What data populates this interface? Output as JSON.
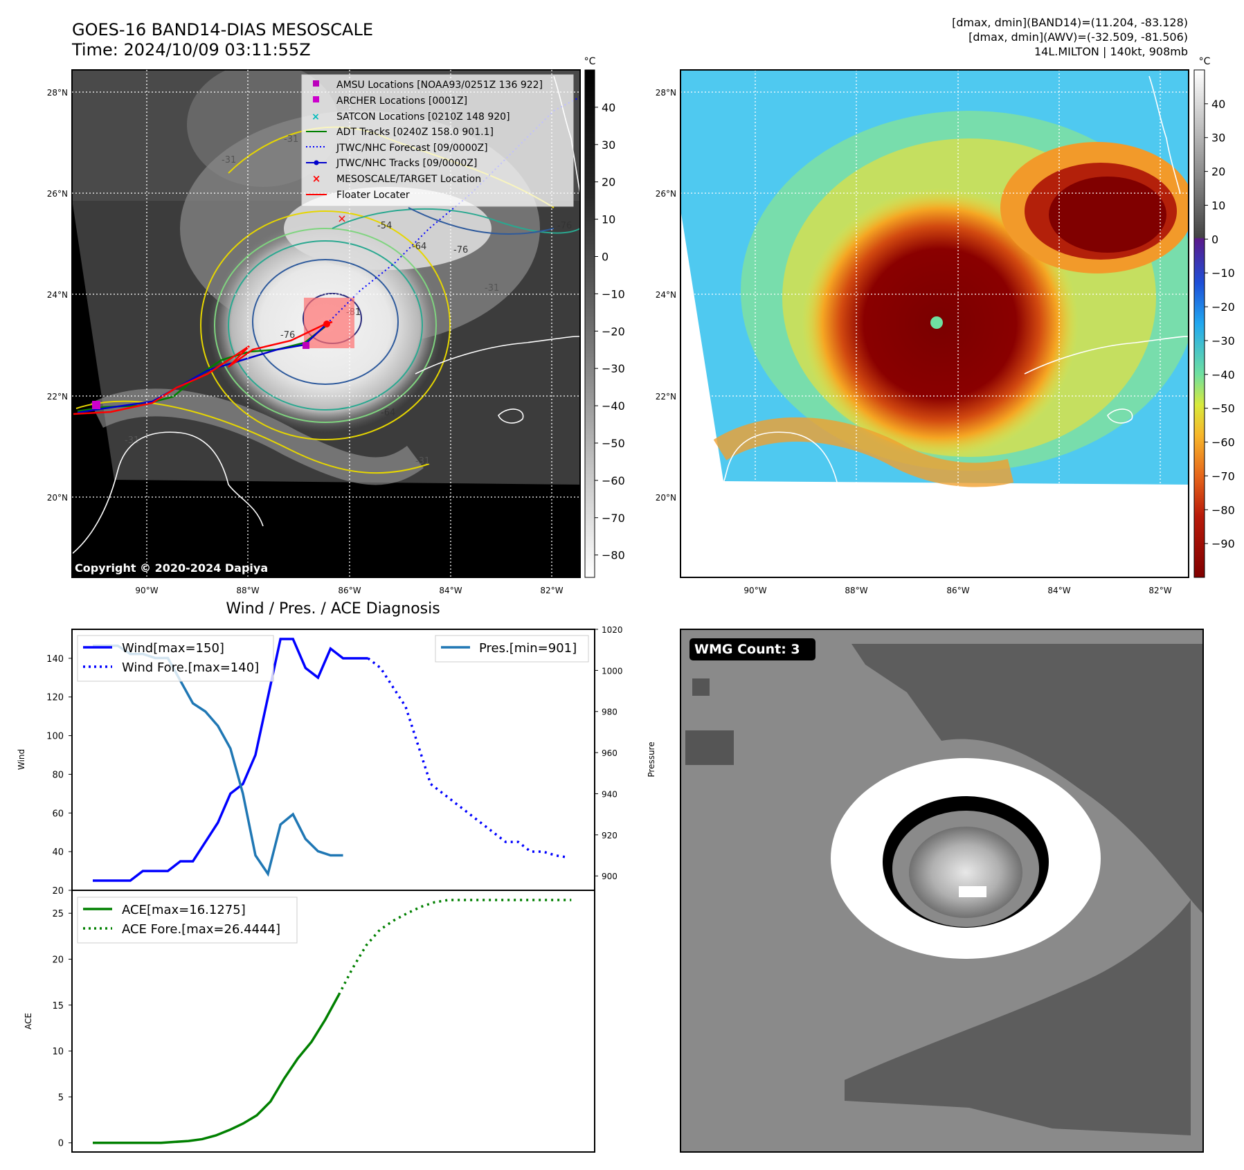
{
  "header": {
    "title_line1": "GOES-16 BAND14-DIAS MESOSCALE",
    "title_line2": "Time: 2024/10/09 03:11:55Z",
    "info_line1": "[dmax, dmin](BAND14)=(11.204, -83.128)",
    "info_line2": "[dmax, dmin](AWV)=(-32.509, -81.506)",
    "info_line3": "14L.MILTON | 140kt, 908mb"
  },
  "map_axes": {
    "lat_labels": [
      "28°N",
      "26°N",
      "24°N",
      "22°N",
      "20°N"
    ],
    "lon_labels": [
      "90°W",
      "88°W",
      "86°W",
      "84°W",
      "82°W"
    ]
  },
  "left_map": {
    "copyright": "Copyright © 2020-2024 Dapiya",
    "contour_labels": [
      "-31",
      "-31",
      "-31",
      "-31",
      "-54",
      "-64",
      "-76",
      "-76",
      "-81",
      "-64",
      "-76",
      "-31"
    ],
    "legend": [
      {
        "label": "AMSU Locations [NOAA93/0251Z 136 922]",
        "marker": "square",
        "color": "#bb00bb"
      },
      {
        "label": "ARCHER Locations [0001Z]",
        "marker": "square",
        "color": "#cc00cc"
      },
      {
        "label": "SATCON Locations [0210Z 148 920]",
        "marker": "x",
        "color": "#00bbbb"
      },
      {
        "label": "ADT Tracks [0240Z 158.0 901.1]",
        "marker": "line",
        "color": "#008000"
      },
      {
        "label": "JTWC/NHC Forecast [09/0000Z]",
        "marker": "dotted",
        "color": "#0000ff"
      },
      {
        "label": "JTWC/NHC Tracks [09/0000Z]",
        "marker": "line-dot",
        "color": "#0000cc"
      },
      {
        "label": "MESOSCALE/TARGET Location",
        "marker": "x",
        "color": "#ff0000"
      },
      {
        "label": "Floater Locater",
        "marker": "line",
        "color": "#ff0000"
      }
    ]
  },
  "colorbar_gray": {
    "unit": "°C",
    "ticks": [
      40,
      30,
      20,
      10,
      0,
      -10,
      -20,
      -30,
      -40,
      -50,
      -60,
      -70,
      -80
    ],
    "range": [
      -86,
      50
    ]
  },
  "colorbar_color": {
    "unit": "°C",
    "ticks": [
      40,
      30,
      20,
      10,
      0,
      -10,
      -20,
      -30,
      -40,
      -50,
      -60,
      -70,
      -80,
      -90
    ],
    "range": [
      -100,
      50
    ]
  },
  "colors": {
    "wind": "#0000ff",
    "pressure": "#1f77b4",
    "ace": "#008000",
    "bt_warm": "#8b0000",
    "bt_cold": "#1e90ff"
  },
  "wmg": {
    "label": "WMG Count: 3"
  },
  "chart_data": [
    {
      "type": "line",
      "title": "Wind / Pres. / ACE Diagnosis",
      "ylabel": "Wind",
      "y2label": "Pressure",
      "ylim": [
        20,
        155
      ],
      "y2lim": [
        893,
        1020
      ],
      "yticks": [
        20,
        40,
        60,
        80,
        100,
        120,
        140
      ],
      "y2ticks": [
        900,
        920,
        940,
        960,
        980,
        1000,
        1020
      ],
      "series": [
        {
          "name": "Wind[max=150]",
          "axis": "left",
          "style": "solid",
          "x": [
            0,
            1,
            2,
            3,
            4,
            5,
            6,
            7,
            8,
            9,
            10,
            11,
            12,
            13,
            14,
            15,
            16,
            17,
            18,
            19,
            20,
            21,
            22
          ],
          "values": [
            25,
            25,
            25,
            25,
            30,
            30,
            30,
            35,
            35,
            45,
            55,
            70,
            75,
            90,
            120,
            150,
            150,
            135,
            130,
            145,
            140,
            140,
            140
          ]
        },
        {
          "name": "Wind Fore.[max=140]",
          "axis": "left",
          "style": "dotted",
          "x": [
            22,
            23,
            24,
            25,
            26,
            27,
            28,
            29,
            30,
            31,
            32,
            33,
            34,
            35,
            36,
            37,
            38
          ],
          "values": [
            140,
            135,
            125,
            115,
            95,
            75,
            70,
            65,
            60,
            55,
            50,
            45,
            45,
            40,
            40,
            38,
            37
          ]
        },
        {
          "name": "Pres.[min=901]",
          "axis": "right",
          "style": "solid",
          "x": [
            0,
            1,
            2,
            3,
            4,
            5,
            6,
            7,
            8,
            9,
            10,
            11,
            12,
            13,
            14,
            15,
            16,
            17,
            18,
            19,
            20
          ],
          "values": [
            1012,
            1012,
            1012,
            1008,
            1008,
            1006,
            1006,
            995,
            984,
            980,
            973,
            962,
            940,
            910,
            901,
            925,
            930,
            918,
            912,
            910,
            910
          ]
        }
      ],
      "legend_left": [
        "Wind[max=150]",
        "Wind Fore.[max=140]"
      ],
      "legend_right": [
        "Pres.[min=901]"
      ]
    },
    {
      "type": "line",
      "ylabel": "ACE",
      "ylim": [
        -1,
        27.5
      ],
      "yticks": [
        0,
        5,
        10,
        15,
        20,
        25
      ],
      "series": [
        {
          "name": "ACE[max=16.1275]",
          "style": "solid",
          "x": [
            0,
            1,
            2,
            3,
            4,
            5,
            6,
            7,
            8,
            9,
            10,
            11,
            12,
            13,
            14,
            15,
            16,
            17,
            18
          ],
          "values": [
            0,
            0,
            0,
            0,
            0,
            0,
            0.1,
            0.2,
            0.4,
            0.8,
            1.4,
            2.1,
            3.0,
            4.5,
            7.0,
            9.2,
            11.0,
            13.4,
            16.1275
          ]
        },
        {
          "name": "ACE Fore.[max=26.4444]",
          "style": "dotted",
          "x": [
            18,
            19,
            20,
            21,
            22,
            23,
            24,
            25,
            26,
            27,
            28,
            29,
            30,
            31,
            32,
            33,
            34,
            35
          ],
          "values": [
            16.1275,
            19.0,
            21.5,
            23.2,
            24.2,
            25.0,
            25.7,
            26.2,
            26.4444,
            26.4444,
            26.4444,
            26.4444,
            26.4444,
            26.4444,
            26.4444,
            26.4444,
            26.4444,
            26.4444
          ]
        }
      ],
      "legend": [
        "ACE[max=16.1275]",
        "ACE Fore.[max=26.4444]"
      ]
    }
  ]
}
